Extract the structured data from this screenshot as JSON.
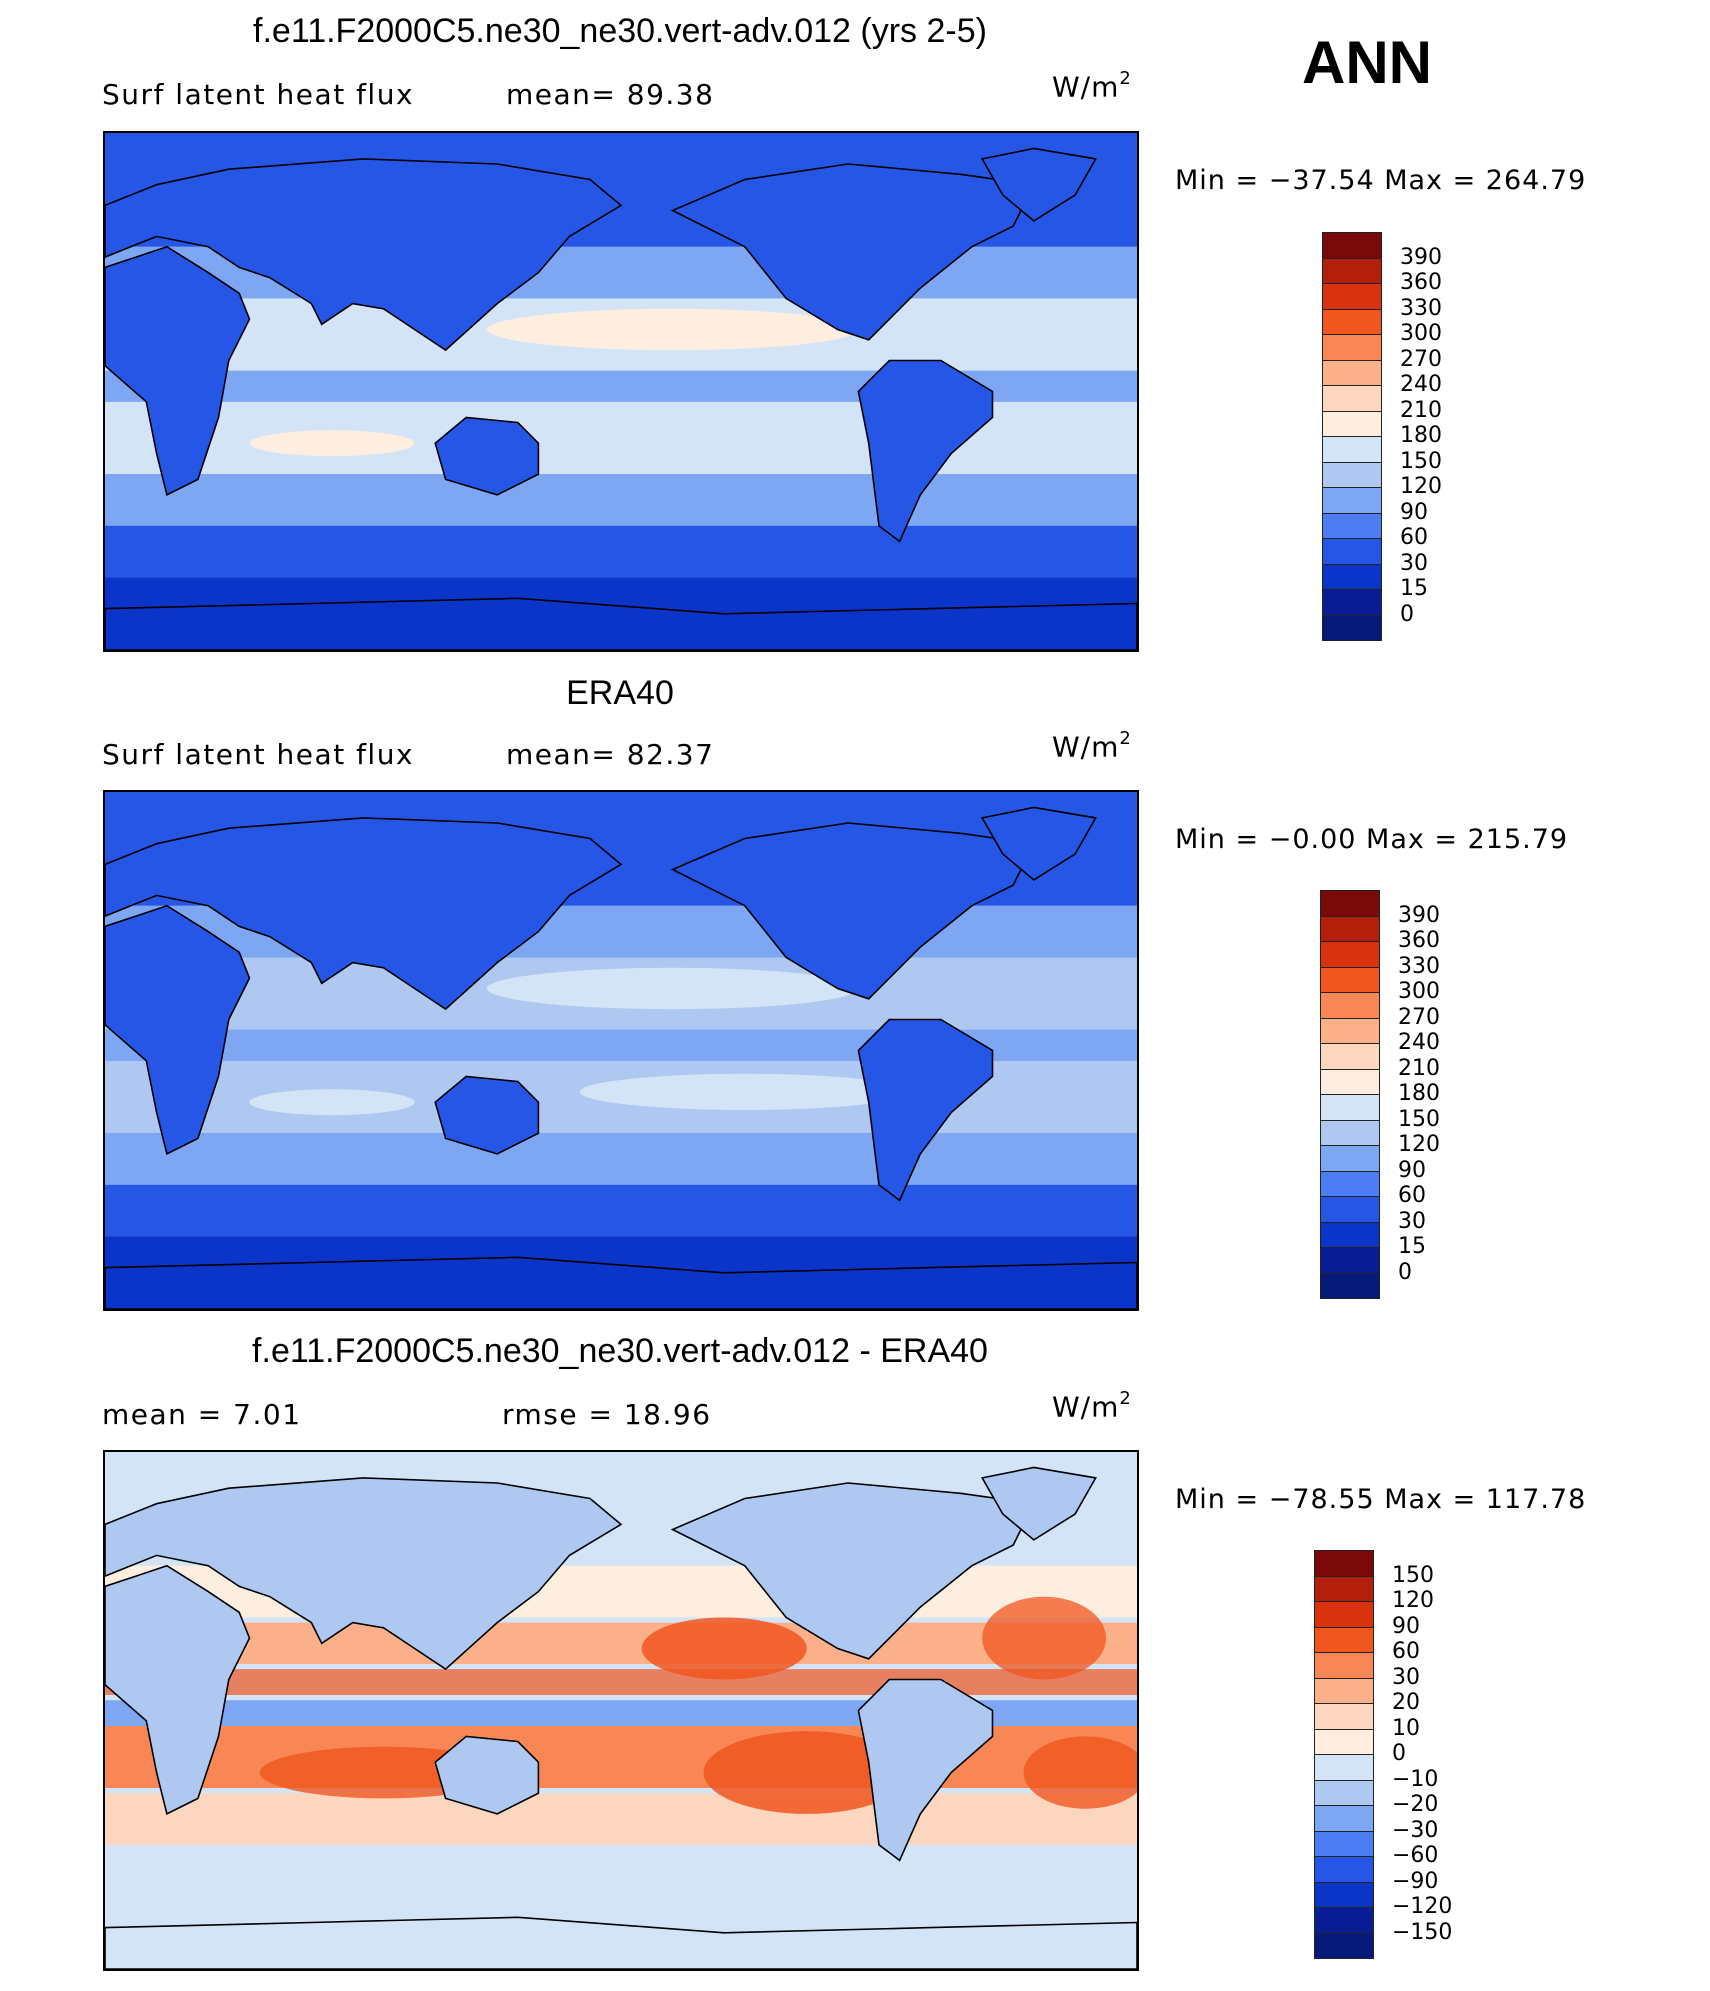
{
  "season": "ANN",
  "panels": [
    {
      "title": "f.e11.F2000C5.ne30_ne30.vert-adv.012 (yrs 2-5)",
      "left_label": "Surf  latent  heat  flux",
      "mid_label": "mean=   89.38",
      "units_base": "W/m",
      "units_exp": "2",
      "minmax": "Min  =  −37.54  Max  =  264.79",
      "colorbar": {
        "labels": [
          "390",
          "360",
          "330",
          "300",
          "270",
          "240",
          "210",
          "180",
          "150",
          "120",
          "90",
          "60",
          "30",
          "15",
          "0"
        ],
        "colors": [
          "#7a0a0a",
          "#b31f0a",
          "#d9320f",
          "#f0561f",
          "#f88755",
          "#fbb08a",
          "#fdd6c0",
          "#fdeedf",
          "#d4e4f7",
          "#aec8f2",
          "#7ea7f3",
          "#4d7df3",
          "#2556e6",
          "#0b35c9",
          "#0a1c96",
          "#061a7a"
        ]
      },
      "field": "model"
    },
    {
      "title": "ERA40",
      "left_label": "Surf  latent  heat  flux",
      "mid_label": "mean=   82.37",
      "units_base": "W/m",
      "units_exp": "2",
      "minmax": "Min  =   −0.00  Max  =  215.79",
      "colorbar": {
        "labels": [
          "390",
          "360",
          "330",
          "300",
          "270",
          "240",
          "210",
          "180",
          "150",
          "120",
          "90",
          "60",
          "30",
          "15",
          "0"
        ],
        "colors": [
          "#7a0a0a",
          "#b31f0a",
          "#d9320f",
          "#f0561f",
          "#f88755",
          "#fbb08a",
          "#fdd6c0",
          "#fdeedf",
          "#d4e4f7",
          "#aec8f2",
          "#7ea7f3",
          "#4d7df3",
          "#2556e6",
          "#0b35c9",
          "#0a1c96",
          "#061a7a"
        ]
      },
      "field": "obs"
    },
    {
      "title": "f.e11.F2000C5.ne30_ne30.vert-adv.012 - ERA40",
      "left_label": "mean  =     7.01",
      "mid_label": "rmse  =    18.96",
      "units_base": "W/m",
      "units_exp": "2",
      "minmax": "Min  =  −78.55  Max  =  117.78",
      "colorbar": {
        "labels": [
          "150",
          "120",
          "90",
          "60",
          "30",
          "20",
          "10",
          "0",
          "−10",
          "−20",
          "−30",
          "−60",
          "−90",
          "−120",
          "−150"
        ],
        "colors": [
          "#7a0a0a",
          "#b31f0a",
          "#d9320f",
          "#f0561f",
          "#f88755",
          "#fbb08a",
          "#fdd6c0",
          "#fdeedf",
          "#d4e4f7",
          "#aec8f2",
          "#7ea7f3",
          "#4d7df3",
          "#2556e6",
          "#0b35c9",
          "#0a1c96",
          "#061a7a"
        ]
      },
      "field": "diff"
    }
  ]
}
